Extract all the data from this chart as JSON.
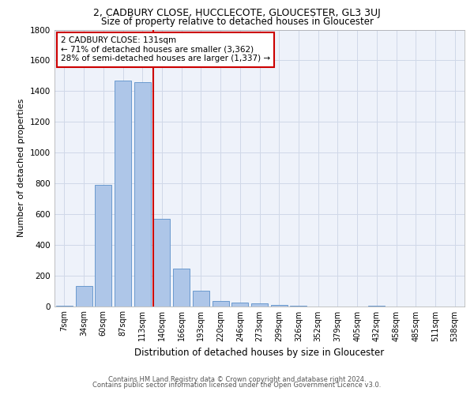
{
  "title_line1": "2, CADBURY CLOSE, HUCCLECOTE, GLOUCESTER, GL3 3UJ",
  "title_line2": "Size of property relative to detached houses in Gloucester",
  "xlabel": "Distribution of detached houses by size in Gloucester",
  "ylabel": "Number of detached properties",
  "footer_line1": "Contains HM Land Registry data © Crown copyright and database right 2024.",
  "footer_line2": "Contains public sector information licensed under the Open Government Licence v3.0.",
  "annotation_title": "2 CADBURY CLOSE: 131sqm",
  "annotation_line1": "← 71% of detached houses are smaller (3,362)",
  "annotation_line2": "28% of semi-detached houses are larger (1,337) →",
  "bar_labels": [
    "7sqm",
    "34sqm",
    "60sqm",
    "87sqm",
    "113sqm",
    "140sqm",
    "166sqm",
    "193sqm",
    "220sqm",
    "246sqm",
    "273sqm",
    "299sqm",
    "326sqm",
    "352sqm",
    "379sqm",
    "405sqm",
    "432sqm",
    "458sqm",
    "485sqm",
    "511sqm",
    "538sqm"
  ],
  "bar_values": [
    5,
    130,
    790,
    1470,
    1460,
    570,
    245,
    100,
    35,
    25,
    20,
    10,
    5,
    0,
    0,
    0,
    5,
    0,
    0,
    0,
    0
  ],
  "bar_color": "#aec6e8",
  "bar_edge_color": "#5b8fc9",
  "grid_color": "#d0d8e8",
  "vline_x_index": 4.55,
  "vline_color": "#cc0000",
  "ylim": [
    0,
    1800
  ],
  "yticks": [
    0,
    200,
    400,
    600,
    800,
    1000,
    1200,
    1400,
    1600,
    1800
  ],
  "background_color": "#eef2fa",
  "title1_fontsize": 9,
  "title2_fontsize": 8.5,
  "ylabel_fontsize": 8,
  "xlabel_fontsize": 8.5,
  "tick_fontsize": 7,
  "footer_fontsize": 6
}
